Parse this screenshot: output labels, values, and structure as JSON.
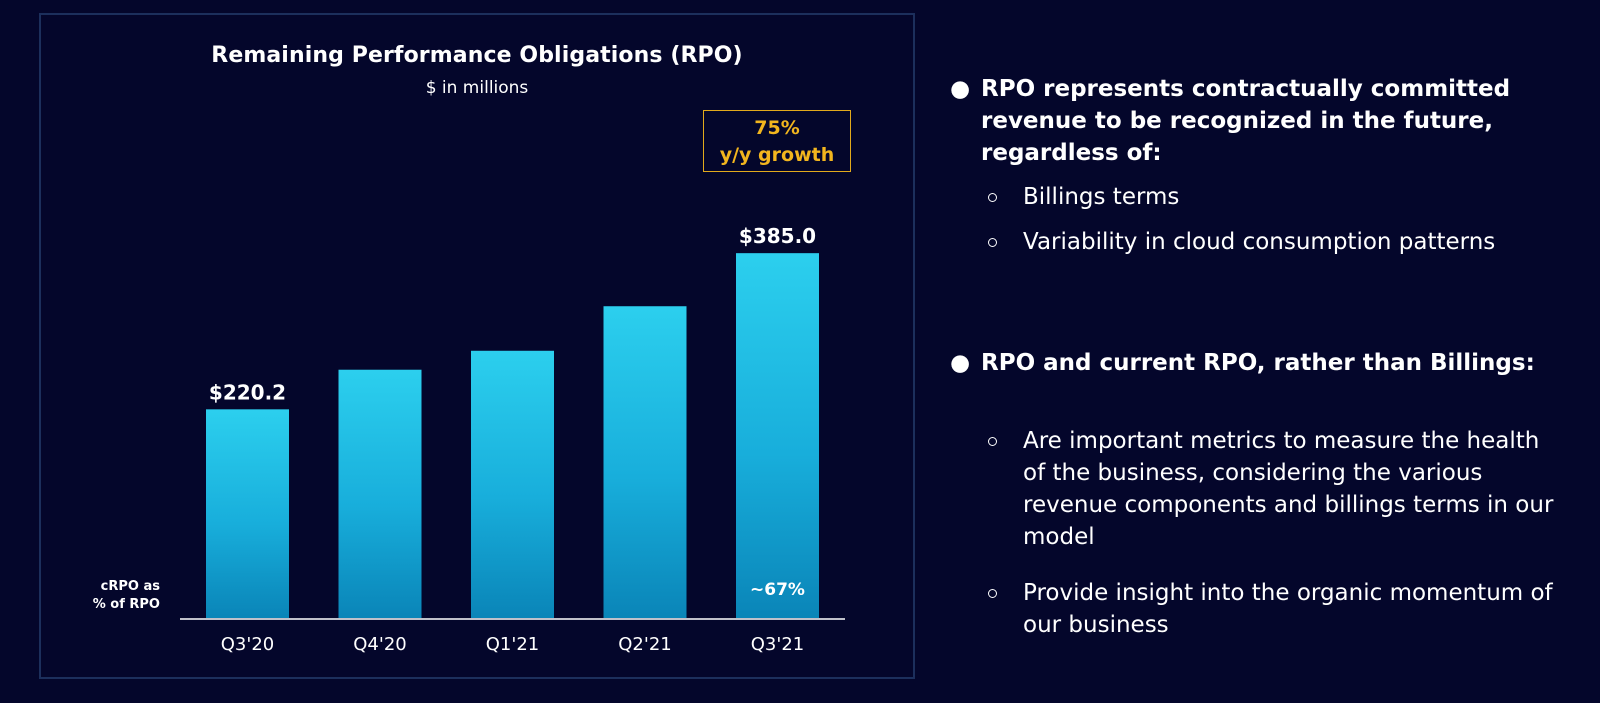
{
  "chart_data": {
    "type": "bar",
    "title": "Remaining Performance Obligations (RPO)",
    "subtitle": "$ in millions",
    "categories": [
      "Q3'20",
      "Q4'20",
      "Q1'21",
      "Q2'21",
      "Q3'21"
    ],
    "values": [
      220.2,
      262,
      282,
      329,
      385.0
    ],
    "data_labels": [
      "$220.2",
      "",
      "",
      "",
      "$385.0"
    ],
    "ylim": [
      0,
      420
    ],
    "grid": false,
    "bar_color_top": "#2ccfee",
    "bar_color_bottom": "#0a85b8",
    "annotation": {
      "growth_line1": "75%",
      "growth_line2": "y/y growth",
      "color": "#f2b51e"
    },
    "crpo_label_line1": "cRPO as",
    "crpo_label_line2": "% of RPO",
    "crpo_values": [
      "",
      "",
      "",
      "",
      "~67%"
    ]
  },
  "bullets": [
    {
      "text": "RPO represents contractually committed revenue to be recognized in the future, regardless of:",
      "subs": [
        "Billings terms",
        "Variability in cloud consumption patterns"
      ]
    },
    {
      "text": "RPO and current RPO, rather than Billings:",
      "subs": [
        "Are important metrics to measure the health of the business, considering the various revenue components and billings terms in our model",
        "Provide insight into the organic momentum of our business"
      ]
    }
  ],
  "bullet_symbol": "●"
}
